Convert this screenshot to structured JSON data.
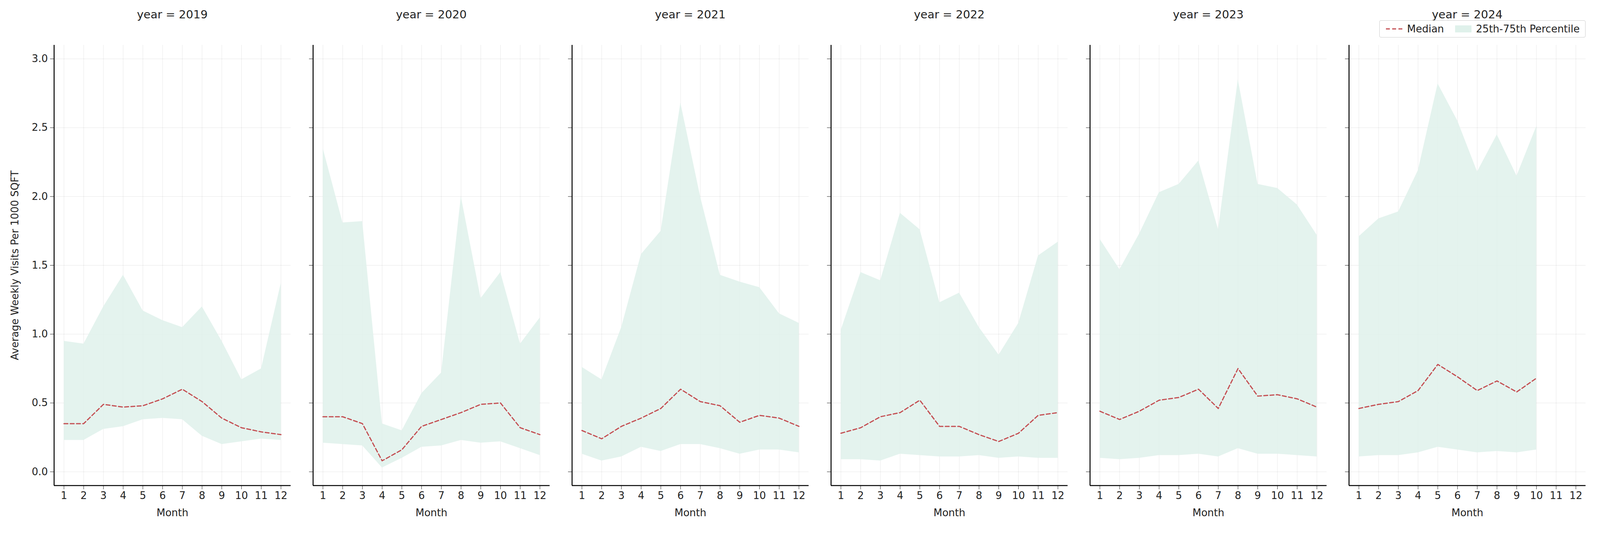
{
  "chart_data": [
    {
      "type": "line",
      "title": "year = 2019",
      "xlabel": "Month",
      "ylabel": "Average Weekly Visits Per 1000 SQFT",
      "x": [
        1,
        2,
        3,
        4,
        5,
        6,
        7,
        8,
        9,
        10,
        11,
        12
      ],
      "series": [
        {
          "name": "Median",
          "type": "line",
          "color": "#c44e52",
          "line_style": "dashed",
          "values": [
            0.35,
            0.35,
            0.49,
            0.47,
            0.48,
            0.53,
            0.6,
            0.51,
            0.39,
            0.32,
            0.29,
            0.27
          ]
        },
        {
          "name": "25th-75th Percentile",
          "type": "band",
          "color": "#dff1eb",
          "low": [
            0.23,
            0.23,
            0.31,
            0.33,
            0.38,
            0.39,
            0.38,
            0.26,
            0.2,
            0.22,
            0.24,
            0.23
          ],
          "high": [
            0.95,
            0.93,
            1.2,
            1.43,
            1.17,
            1.1,
            1.05,
            1.2,
            0.95,
            0.67,
            0.75,
            1.37
          ]
        }
      ],
      "xlim": [
        0.5,
        12.5
      ],
      "xticks": [
        1,
        2,
        3,
        4,
        5,
        6,
        7,
        8,
        9,
        10,
        11,
        12
      ],
      "ylim": [
        -0.1,
        3.1
      ],
      "yticks": [
        {
          "value": 0,
          "label": "0.0"
        },
        {
          "value": 0.5,
          "label": "0.5"
        },
        {
          "value": 1,
          "label": "1.0"
        },
        {
          "value": 1.5,
          "label": "1.5"
        },
        {
          "value": 2,
          "label": "2.0"
        },
        {
          "value": 2.5,
          "label": "2.5"
        },
        {
          "value": 3,
          "label": "3.0"
        }
      ],
      "grid": true
    },
    {
      "type": "line",
      "title": "year = 2020",
      "xlabel": "Month",
      "x": [
        1,
        2,
        3,
        4,
        5,
        6,
        7,
        8,
        9,
        10,
        11,
        12
      ],
      "series": [
        {
          "name": "Median",
          "type": "line",
          "color": "#c44e52",
          "line_style": "dashed",
          "values": [
            0.4,
            0.4,
            0.35,
            0.08,
            0.16,
            0.33,
            0.38,
            0.43,
            0.49,
            0.5,
            0.32,
            0.27
          ]
        },
        {
          "name": "25th-75th Percentile",
          "type": "band",
          "color": "#dff1eb",
          "low": [
            0.21,
            0.2,
            0.19,
            0.03,
            0.1,
            0.18,
            0.19,
            0.23,
            0.21,
            0.22,
            0.17,
            0.12
          ],
          "high": [
            2.35,
            1.81,
            1.82,
            0.35,
            0.3,
            0.57,
            0.72,
            2.0,
            1.26,
            1.45,
            0.93,
            1.12
          ]
        }
      ],
      "xlim": [
        0.5,
        12.5
      ],
      "xticks": [
        1,
        2,
        3,
        4,
        5,
        6,
        7,
        8,
        9,
        10,
        11,
        12
      ],
      "ylim": [
        -0.1,
        3.1
      ],
      "yticks": [
        0,
        0.5,
        1,
        1.5,
        2,
        2.5,
        3
      ],
      "tick_labels": "x",
      "grid": true
    },
    {
      "type": "line",
      "title": "year = 2021",
      "xlabel": "Month",
      "x": [
        1,
        2,
        3,
        4,
        5,
        6,
        7,
        8,
        9,
        10,
        11,
        12
      ],
      "series": [
        {
          "name": "Median",
          "type": "line",
          "color": "#c44e52",
          "line_style": "dashed",
          "values": [
            0.3,
            0.24,
            0.33,
            0.39,
            0.46,
            0.6,
            0.51,
            0.48,
            0.36,
            0.41,
            0.39,
            0.33
          ]
        },
        {
          "name": "25th-75th Percentile",
          "type": "band",
          "color": "#dff1eb",
          "low": [
            0.13,
            0.08,
            0.11,
            0.18,
            0.15,
            0.2,
            0.2,
            0.17,
            0.13,
            0.16,
            0.16,
            0.14
          ],
          "high": [
            0.76,
            0.67,
            1.05,
            1.58,
            1.75,
            2.68,
            2.0,
            1.43,
            1.38,
            1.34,
            1.15,
            1.08
          ]
        }
      ],
      "xlim": [
        0.5,
        12.5
      ],
      "xticks": [
        1,
        2,
        3,
        4,
        5,
        6,
        7,
        8,
        9,
        10,
        11,
        12
      ],
      "ylim": [
        -0.1,
        3.1
      ],
      "yticks": [
        0,
        0.5,
        1,
        1.5,
        2,
        2.5,
        3
      ],
      "tick_labels": "x",
      "grid": true
    },
    {
      "type": "line",
      "title": "year = 2022",
      "xlabel": "Month",
      "x": [
        1,
        2,
        3,
        4,
        5,
        6,
        7,
        8,
        9,
        10,
        11,
        12
      ],
      "series": [
        {
          "name": "Median",
          "type": "line",
          "color": "#c44e52",
          "line_style": "dashed",
          "values": [
            0.28,
            0.32,
            0.4,
            0.43,
            0.52,
            0.33,
            0.33,
            0.27,
            0.22,
            0.28,
            0.41,
            0.43
          ]
        },
        {
          "name": "25th-75th Percentile",
          "type": "band",
          "color": "#dff1eb",
          "low": [
            0.09,
            0.09,
            0.08,
            0.13,
            0.12,
            0.11,
            0.11,
            0.12,
            0.1,
            0.11,
            0.1,
            0.1
          ],
          "high": [
            1.03,
            1.45,
            1.39,
            1.88,
            1.76,
            1.23,
            1.3,
            1.05,
            0.85,
            1.08,
            1.57,
            1.67
          ]
        }
      ],
      "xlim": [
        0.5,
        12.5
      ],
      "xticks": [
        1,
        2,
        3,
        4,
        5,
        6,
        7,
        8,
        9,
        10,
        11,
        12
      ],
      "ylim": [
        -0.1,
        3.1
      ],
      "yticks": [
        0,
        0.5,
        1,
        1.5,
        2,
        2.5,
        3
      ],
      "tick_labels": "x",
      "grid": true
    },
    {
      "type": "line",
      "title": "year = 2023",
      "xlabel": "Month",
      "x": [
        1,
        2,
        3,
        4,
        5,
        6,
        7,
        8,
        9,
        10,
        11,
        12
      ],
      "series": [
        {
          "name": "Median",
          "type": "line",
          "color": "#c44e52",
          "line_style": "dashed",
          "values": [
            0.44,
            0.38,
            0.44,
            0.52,
            0.54,
            0.6,
            0.46,
            0.75,
            0.55,
            0.56,
            0.53,
            0.47
          ]
        },
        {
          "name": "25th-75th Percentile",
          "type": "band",
          "color": "#dff1eb",
          "low": [
            0.1,
            0.09,
            0.1,
            0.12,
            0.12,
            0.13,
            0.11,
            0.17,
            0.13,
            0.13,
            0.12,
            0.11
          ],
          "high": [
            1.69,
            1.47,
            1.73,
            2.03,
            2.09,
            2.26,
            1.76,
            2.85,
            2.09,
            2.06,
            1.94,
            1.72
          ]
        }
      ],
      "xlim": [
        0.5,
        12.5
      ],
      "xticks": [
        1,
        2,
        3,
        4,
        5,
        6,
        7,
        8,
        9,
        10,
        11,
        12
      ],
      "ylim": [
        -0.1,
        3.1
      ],
      "yticks": [
        0,
        0.5,
        1,
        1.5,
        2,
        2.5,
        3
      ],
      "tick_labels": "x",
      "grid": true
    },
    {
      "type": "line",
      "title": "year = 2024",
      "xlabel": "Month",
      "x": [
        1,
        2,
        3,
        4,
        5,
        6,
        7,
        8,
        9,
        10
      ],
      "series": [
        {
          "name": "Median",
          "type": "line",
          "color": "#c44e52",
          "line_style": "dashed",
          "values": [
            0.46,
            0.49,
            0.51,
            0.59,
            0.78,
            0.69,
            0.59,
            0.66,
            0.58,
            0.68
          ]
        },
        {
          "name": "25th-75th Percentile",
          "type": "band",
          "color": "#dff1eb",
          "low": [
            0.11,
            0.12,
            0.12,
            0.14,
            0.18,
            0.16,
            0.14,
            0.15,
            0.14,
            0.16
          ],
          "high": [
            1.71,
            1.84,
            1.89,
            2.19,
            2.82,
            2.55,
            2.18,
            2.45,
            2.15,
            2.51
          ]
        }
      ],
      "xlim": [
        0.5,
        12.5
      ],
      "xticks": [
        1,
        2,
        3,
        4,
        5,
        6,
        7,
        8,
        9,
        10,
        11,
        12
      ],
      "ylim": [
        -0.1,
        3.1
      ],
      "yticks": [
        0,
        0.5,
        1,
        1.5,
        2,
        2.5,
        3
      ],
      "tick_labels": "x",
      "grid": true,
      "legend": "upper right"
    }
  ]
}
